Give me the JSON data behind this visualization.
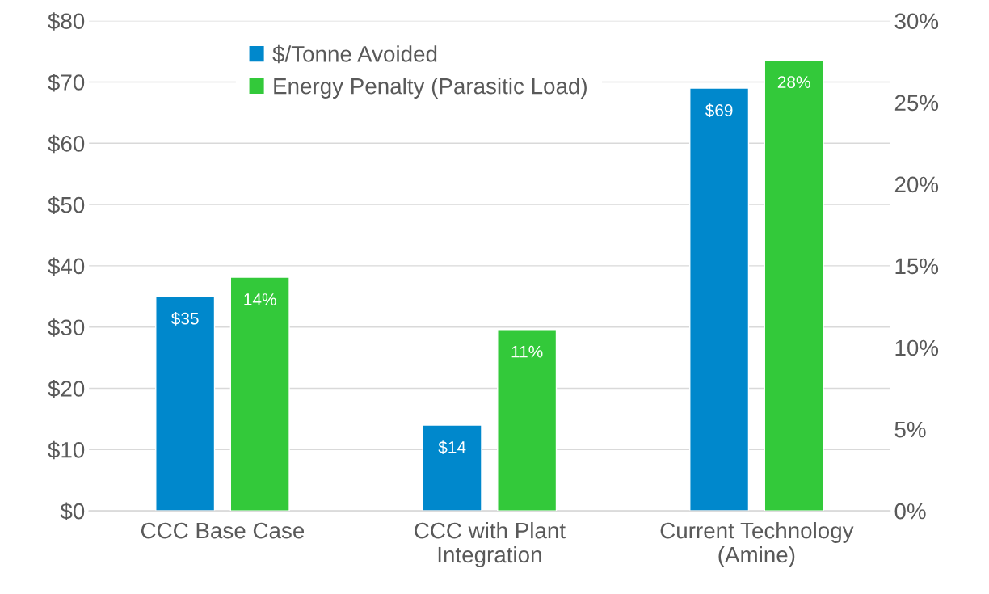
{
  "chart_data": {
    "type": "bar",
    "categories": [
      "CCC Base Case",
      "CCC with Plant\nIntegration",
      "Current Technology\n(Amine)"
    ],
    "series": [
      {
        "name": "$/Tonne Avoided",
        "color": "#0088cc",
        "values": [
          35,
          14,
          69
        ],
        "value_labels": [
          "$35",
          "$14",
          "$69"
        ]
      },
      {
        "name": "Energy Penalty (Parasitic Load)",
        "color": "#33c93a",
        "values": [
          14.3,
          11.1,
          27.6
        ],
        "value_labels": [
          "14%",
          "11%",
          "28%"
        ],
        "axis": "y2"
      }
    ],
    "ylim": [
      0,
      80
    ],
    "yticks": [
      {
        "value": 0,
        "label": "$0"
      },
      {
        "value": 10,
        "label": "$10"
      },
      {
        "value": 20,
        "label": "$20"
      },
      {
        "value": 30,
        "label": "$30"
      },
      {
        "value": 40,
        "label": "$40"
      },
      {
        "value": 50,
        "label": "$50"
      },
      {
        "value": 60,
        "label": "$60"
      },
      {
        "value": 70,
        "label": "$70"
      },
      {
        "value": 80,
        "label": "$80"
      }
    ],
    "y2lim": [
      0,
      30
    ],
    "y2ticks": [
      {
        "value": 0,
        "label": "0%"
      },
      {
        "value": 5,
        "label": "5%"
      },
      {
        "value": 10,
        "label": "10%"
      },
      {
        "value": 15,
        "label": "15%"
      },
      {
        "value": 20,
        "label": "20%"
      },
      {
        "value": 25,
        "label": "25%"
      },
      {
        "value": 30,
        "label": "30%"
      }
    ],
    "grid": "y",
    "legend": "top left"
  }
}
